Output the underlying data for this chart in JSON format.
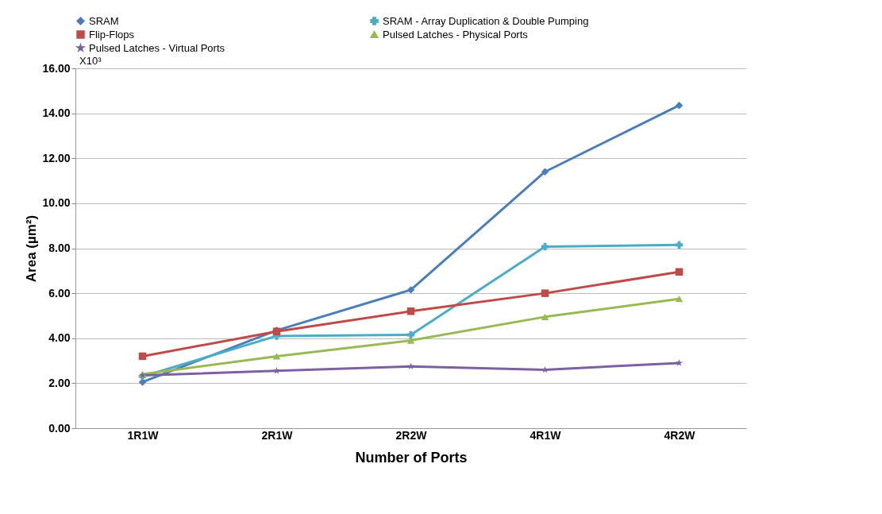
{
  "chart_data": {
    "type": "line",
    "xlabel": "Number of Ports",
    "ylabel": "Area (µm²)",
    "categories": [
      "1R1W",
      "2R1W",
      "2R2W",
      "4R1W",
      "4R2W"
    ],
    "series": [
      {
        "name": "SRAM",
        "color": "#4a7ebb",
        "marker": "diamond",
        "values": [
          2.05,
          4.35,
          6.15,
          11.4,
          14.35
        ]
      },
      {
        "name": "SRAM - Array Duplication & Double Pumping",
        "color": "#4bacc6",
        "marker": "cross",
        "values": [
          2.3,
          4.1,
          4.15,
          8.07,
          8.15
        ]
      },
      {
        "name": "Flip-Flops",
        "color": "#be4b48",
        "marker": "square",
        "values": [
          3.2,
          4.3,
          5.2,
          6.0,
          6.95
        ]
      },
      {
        "name": "Pulsed Latches - Physical Ports",
        "color": "#98b954",
        "marker": "triangle",
        "values": [
          2.4,
          3.2,
          3.9,
          4.95,
          5.75
        ]
      },
      {
        "name": "Pulsed Latches - Virtual Ports",
        "color": "#7d60a0",
        "marker": "star",
        "values": [
          2.35,
          2.55,
          2.75,
          2.6,
          2.9
        ]
      }
    ],
    "ylim": [
      0,
      16
    ],
    "yticks": [
      {
        "value": 0,
        "label": "0.00"
      },
      {
        "value": 2,
        "label": "2.00"
      },
      {
        "value": 4,
        "label": "4.00"
      },
      {
        "value": 6,
        "label": "6.00"
      },
      {
        "value": 8,
        "label": "8.00"
      },
      {
        "value": 10,
        "label": "10.00"
      },
      {
        "value": 12,
        "label": "12.00"
      },
      {
        "value": 14,
        "label": "14.00"
      },
      {
        "value": 16,
        "label": "16.00"
      }
    ],
    "annotations": [
      "X10³"
    ],
    "grid": "y",
    "legend": "top",
    "line_style": "solid"
  }
}
